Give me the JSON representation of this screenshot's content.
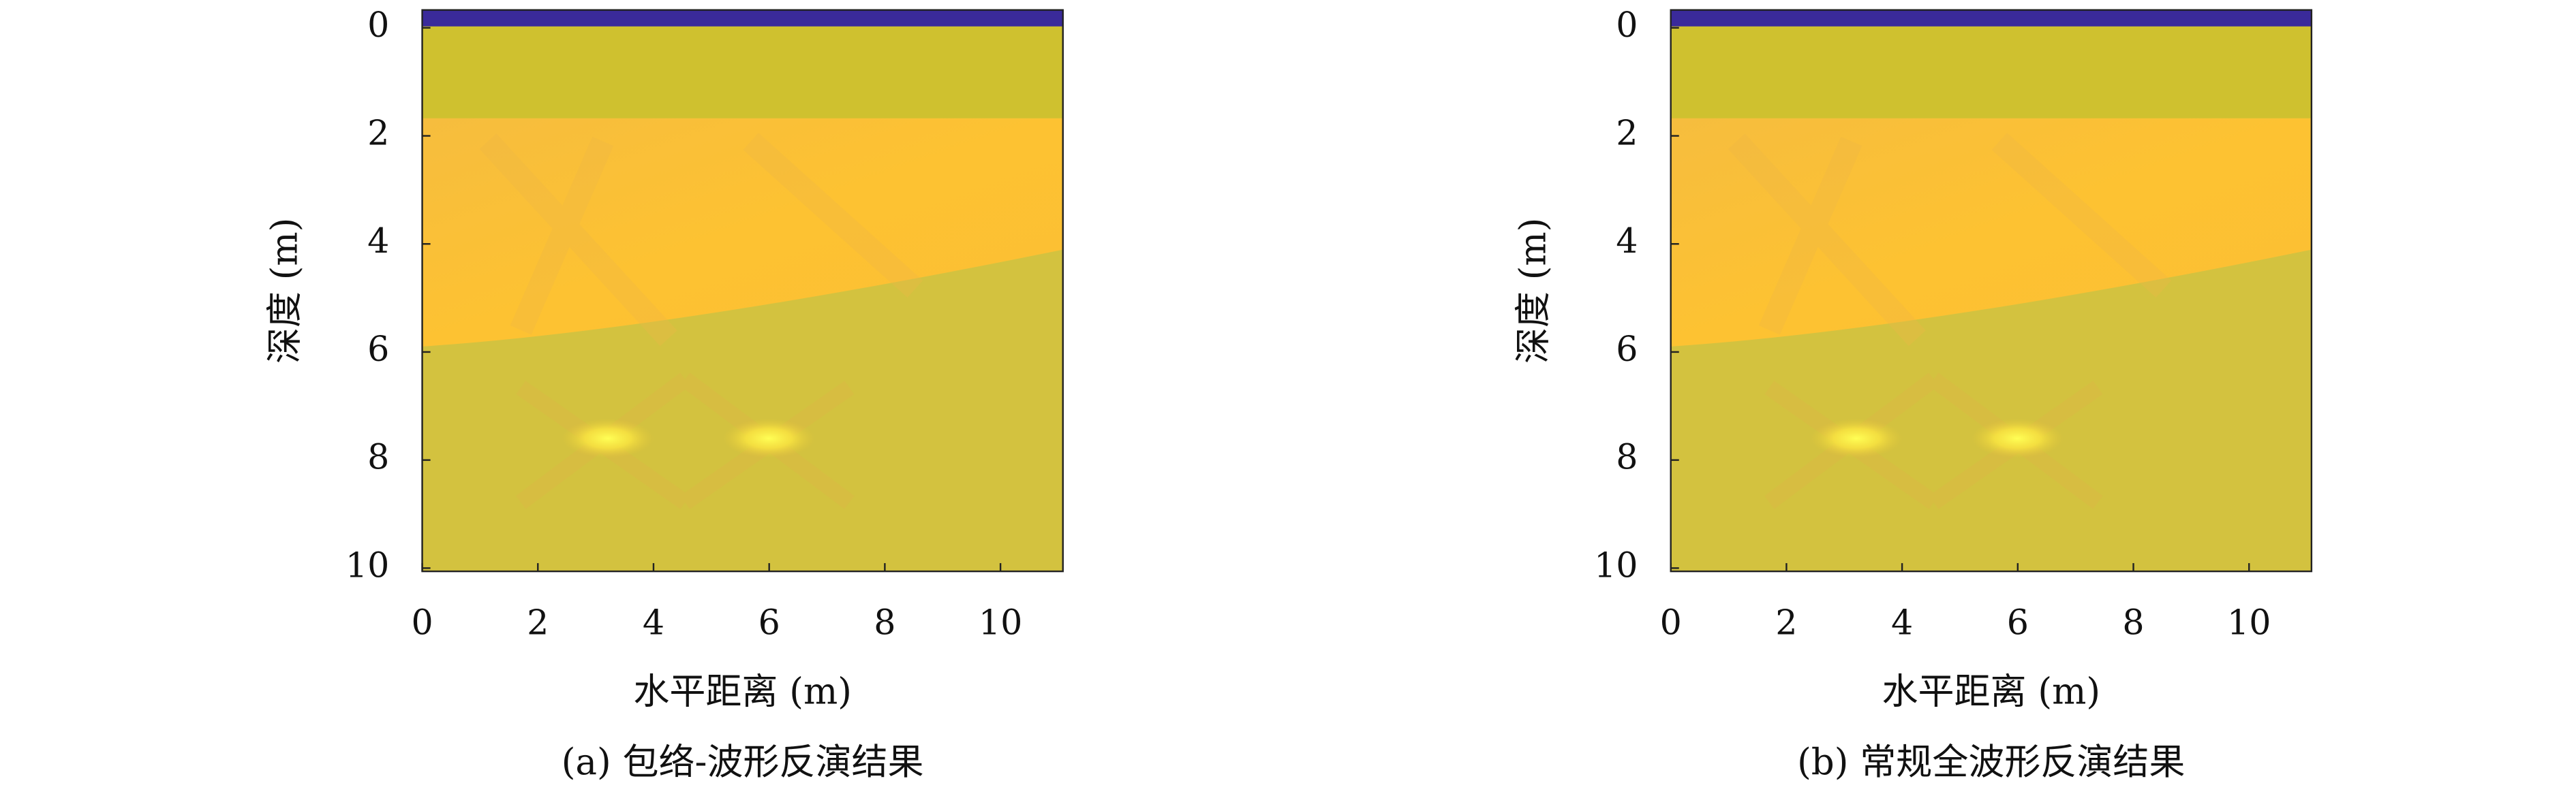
{
  "chart_data": [
    {
      "type": "heatmap",
      "xlabel": "水平距离 (m)",
      "ylabel": "深度 (m)",
      "caption": "(a) 包络-波形反演结果",
      "xlim": [
        0,
        11.08
      ],
      "ylim": [
        10.06,
        -0.33
      ],
      "xticks": [
        0,
        2,
        4,
        6,
        8,
        10
      ],
      "yticks": [
        0,
        2,
        4,
        6,
        8,
        10
      ]
    },
    {
      "type": "heatmap",
      "xlabel": "水平距离 (m)",
      "ylabel": "深度 (m)",
      "caption": "(b) 常规全波形反演结果",
      "xlim": [
        0,
        11.08
      ],
      "ylim": [
        10.06,
        -0.33
      ],
      "xticks": [
        0,
        2,
        4,
        6,
        8,
        10
      ],
      "yticks": [
        0,
        2,
        4,
        6,
        8,
        10
      ]
    }
  ]
}
